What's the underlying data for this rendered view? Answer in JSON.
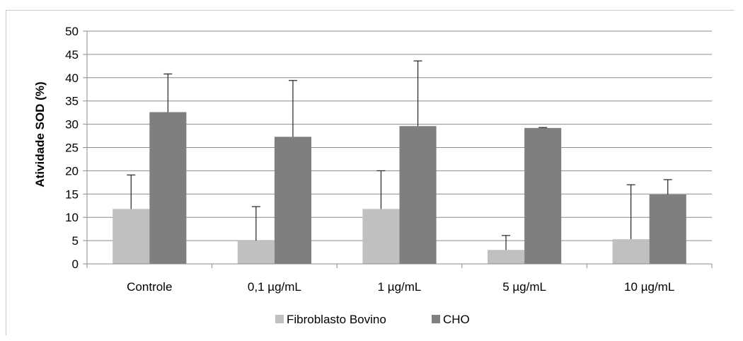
{
  "chart_data": {
    "type": "bar",
    "title": "",
    "xlabel": "",
    "ylabel": "Atividade SOD (%)",
    "ylim": [
      0,
      50
    ],
    "yticks": [
      "0",
      "5",
      "10",
      "15",
      "20",
      "25",
      "30",
      "35",
      "40",
      "45",
      "50"
    ],
    "grid": true,
    "legend_position": "bottom",
    "categories": [
      "Controle",
      "0,1 µg/mL",
      "1 µg/mL",
      "5 µg/mL",
      "10 µg/mL"
    ],
    "series": [
      {
        "name": "Fibroblasto Bovino",
        "color": "#c0c0c0",
        "values": [
          11.8,
          5.0,
          11.8,
          3.0,
          5.3
        ],
        "error": [
          7.3,
          7.3,
          8.2,
          3.1,
          11.7
        ]
      },
      {
        "name": "CHO",
        "color": "#7f7f7f",
        "values": [
          32.6,
          27.3,
          29.6,
          29.2,
          14.9
        ],
        "error": [
          8.2,
          12.1,
          14.0,
          0.1,
          3.2
        ]
      }
    ]
  }
}
